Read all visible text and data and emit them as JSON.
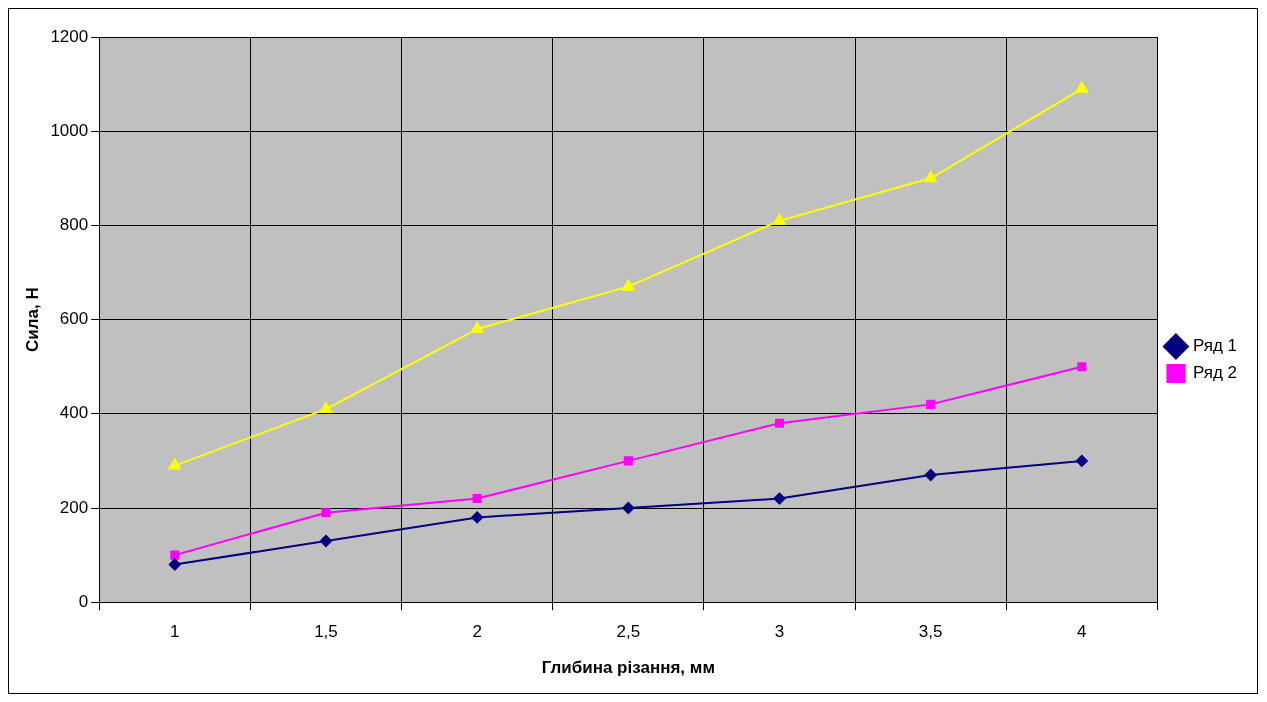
{
  "chart_data": {
    "type": "line",
    "xlabel": "Глибина різання, мм",
    "ylabel": "Сила, Н",
    "categories": [
      "1",
      "1,5",
      "2",
      "2,5",
      "3",
      "3,5",
      "4"
    ],
    "series": [
      {
        "name": "Ряд 1",
        "color": "#000080",
        "marker": "diamond",
        "values": [
          80,
          130,
          180,
          200,
          220,
          270,
          300
        ]
      },
      {
        "name": "Ряд 2",
        "color": "#ff00ff",
        "marker": "square",
        "values": [
          100,
          190,
          220,
          300,
          380,
          420,
          500
        ]
      },
      {
        "color": "#ffff00",
        "marker": "triangle",
        "values": [
          290,
          410,
          580,
          670,
          810,
          900,
          1090
        ]
      }
    ],
    "ylim": [
      0,
      1200
    ],
    "yticks": [
      0,
      200,
      400,
      600,
      800,
      1000,
      1200
    ],
    "grid": true,
    "legend": "right",
    "line_style": "solid"
  }
}
